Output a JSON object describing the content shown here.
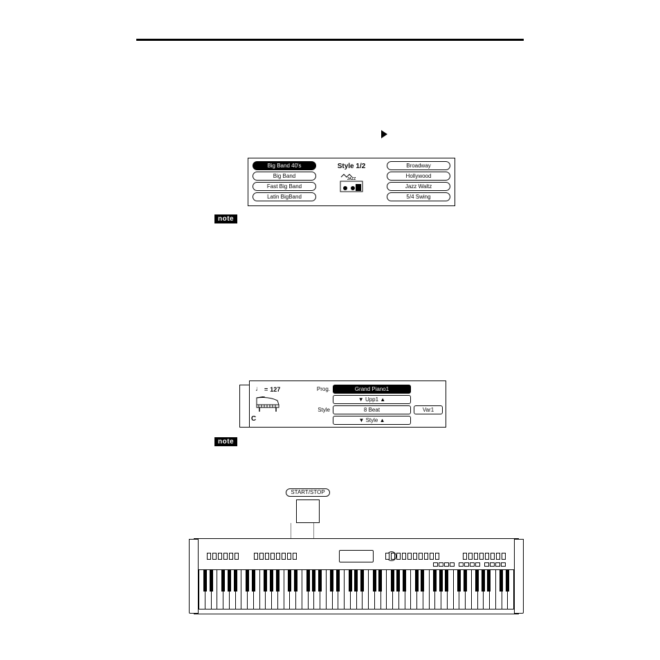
{
  "colors": {
    "fg": "#000000",
    "bg": "#ffffff"
  },
  "note_label": "note",
  "arrow": {
    "symbol": "►"
  },
  "style_screen": {
    "title": "Style 1/2",
    "left_items": [
      {
        "label": "Big Band 40's",
        "active": true
      },
      {
        "label": "Big Band",
        "active": false
      },
      {
        "label": "Fast Big Band",
        "active": false
      },
      {
        "label": "Latin BigBand",
        "active": false
      }
    ],
    "right_items": [
      {
        "label": "Broadway",
        "active": false
      },
      {
        "label": "Hollywood",
        "active": false
      },
      {
        "label": "Jazz Waltz",
        "active": false
      },
      {
        "label": "5/4 Swing",
        "active": false
      }
    ],
    "icon": {
      "name": "jazz-club-icon",
      "caption": "JAZZ"
    }
  },
  "main_screen": {
    "tempo": {
      "glyph": "♩",
      "equals": "=",
      "value": "127"
    },
    "chord": "C",
    "rows": {
      "prog": {
        "label": "Prog.",
        "value": "Grand Piano1",
        "active": true
      },
      "upp1": {
        "value": "Upp1"
      },
      "style": {
        "label": "Style",
        "value": "8 Beat"
      },
      "var": {
        "value": "Var1"
      },
      "styleSel": {
        "value": "Style"
      }
    }
  },
  "startstop": {
    "label": "START/STOP"
  },
  "keyboard": {
    "octaves": 7,
    "white_key_count": 52,
    "black_pattern": [
      1,
      1,
      0,
      1,
      1,
      1,
      0
    ]
  }
}
